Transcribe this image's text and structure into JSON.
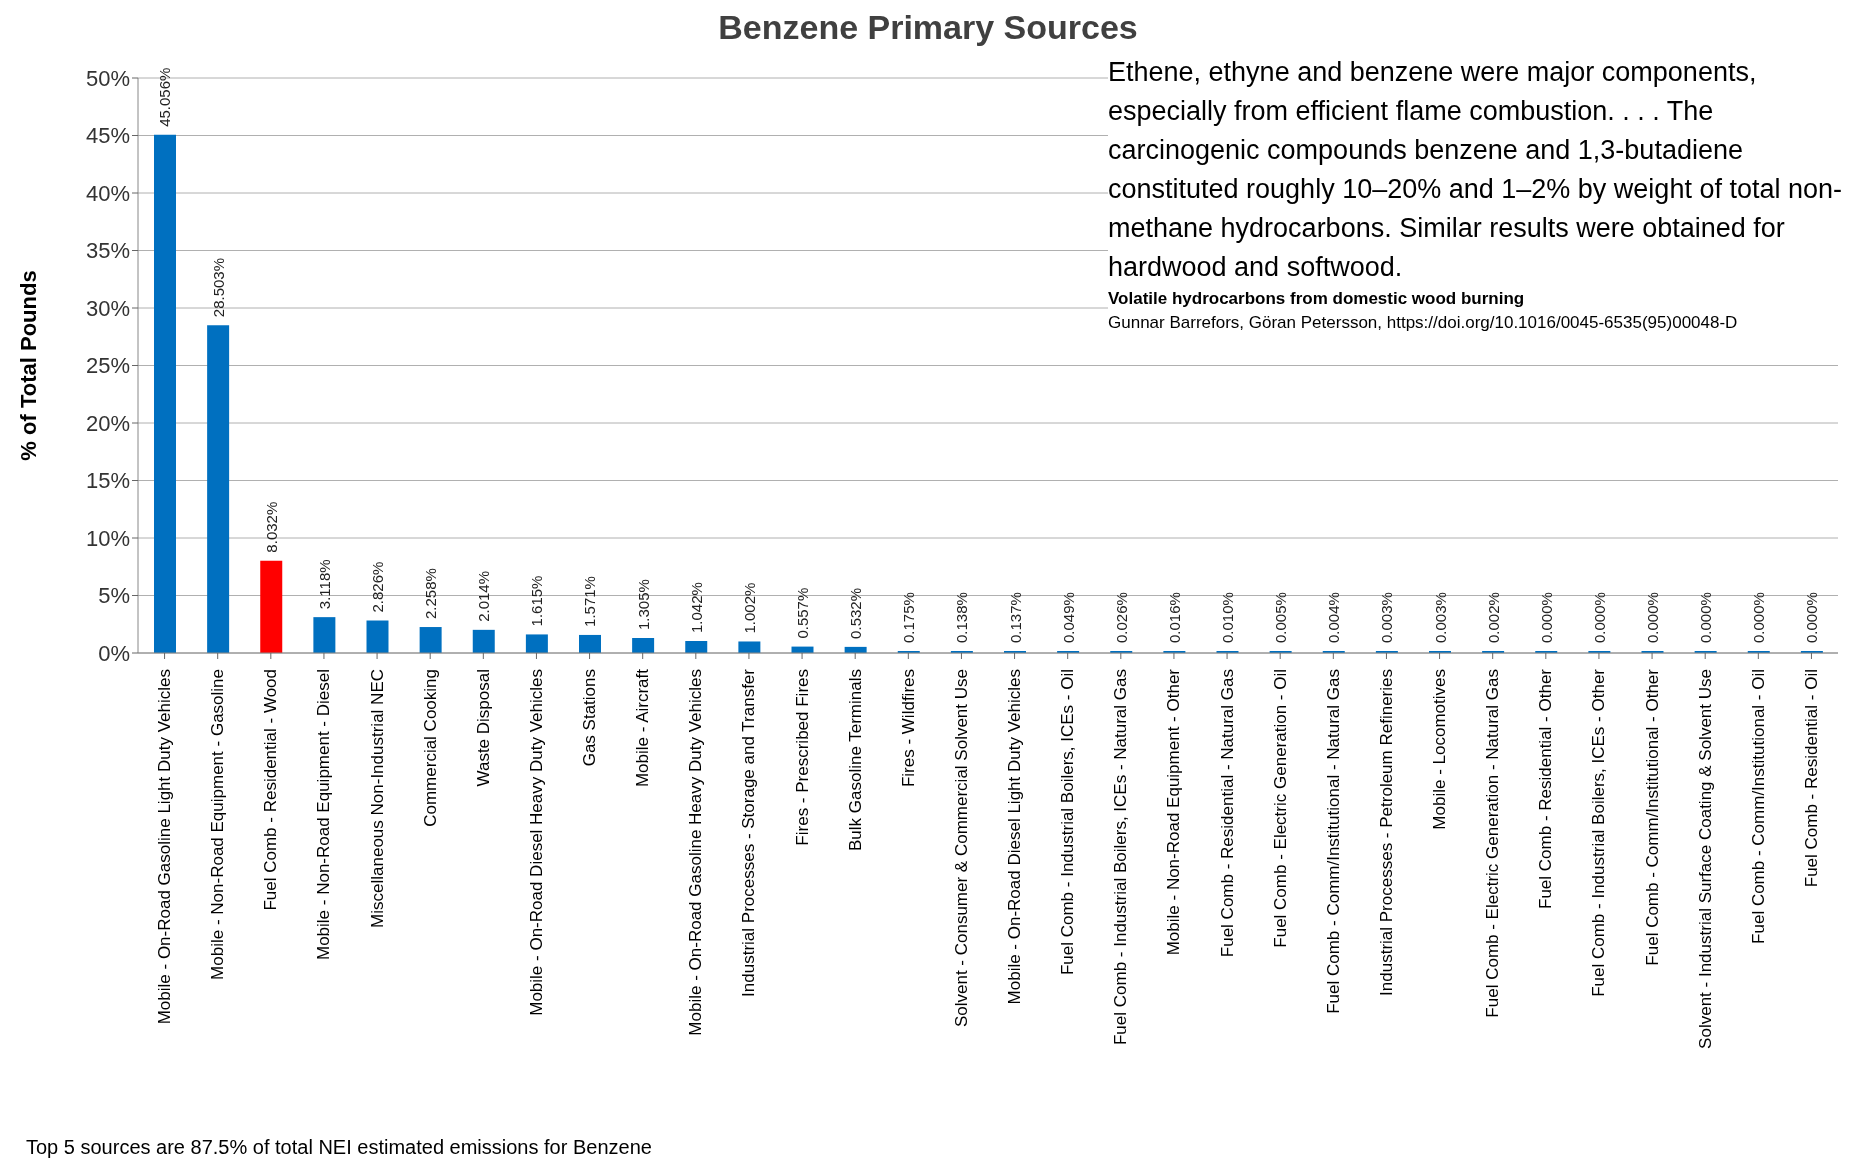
{
  "chart_data": {
    "type": "bar",
    "title": "Benzene Primary Sources",
    "ylabel": "% of Total Pounds",
    "categories": [
      "Mobile - On-Road Gasoline Light Duty Vehicles",
      "Mobile - Non-Road Equipment - Gasoline",
      "Fuel Comb - Residential - Wood",
      "Mobile - Non-Road Equipment - Diesel",
      "Miscellaneous Non-Industrial NEC",
      "Commercial Cooking",
      "Waste Disposal",
      "Mobile - On-Road Diesel Heavy Duty Vehicles",
      "Gas Stations",
      "Mobile - Aircraft",
      "Mobile - On-Road Gasoline Heavy Duty Vehicles",
      "Industrial Processes - Storage and Transfer",
      "Fires - Prescribed Fires",
      "Bulk Gasoline Terminals",
      "Fires - Wildfires",
      "Solvent - Consumer & Commercial Solvent Use",
      "Mobile - On-Road Diesel Light Duty Vehicles",
      "Fuel Comb - Industrial Boilers, ICEs - Oil",
      "Fuel Comb - Industrial Boilers, ICEs - Natural Gas",
      "Mobile - Non-Road Equipment - Other",
      "Fuel Comb - Residential - Natural Gas",
      "Fuel Comb - Electric Generation - Oil",
      "Fuel Comb - Comm/Institutional - Natural Gas",
      "Industrial Processes - Petroleum Refineries",
      "Mobile - Locomotives",
      "Fuel Comb - Electric Generation - Natural Gas",
      "Fuel Comb - Residential - Other",
      "Fuel Comb - Industrial Boilers, ICEs - Other",
      "Fuel Comb - Comm/Institutional - Other",
      "Solvent - Industrial Surface Coating & Solvent Use",
      "Fuel Comb - Comm/Institutional - Oil",
      "Fuel Comb - Residential - Oil"
    ],
    "values": [
      45.056,
      28.503,
      8.032,
      3.118,
      2.826,
      2.258,
      2.014,
      1.615,
      1.571,
      1.305,
      1.042,
      1.002,
      0.557,
      0.532,
      0.175,
      0.138,
      0.137,
      0.049,
      0.026,
      0.016,
      0.01,
      0.005,
      0.004,
      0.003,
      0.003,
      0.002,
      0.0,
      0.0,
      0.0,
      0.0,
      0.0,
      0.0
    ],
    "value_labels": [
      "45.056%",
      "28.503%",
      "8.032%",
      "3.118%",
      "2.826%",
      "2.258%",
      "2.014%",
      "1.615%",
      "1.571%",
      "1.305%",
      "1.042%",
      "1.002%",
      "0.557%",
      "0.532%",
      "0.175%",
      "0.138%",
      "0.137%",
      "0.049%",
      "0.026%",
      "0.016%",
      "0.010%",
      "0.005%",
      "0.004%",
      "0.003%",
      "0.003%",
      "0.002%",
      "0.000%",
      "0.000%",
      "0.000%",
      "0.000%",
      "0.000%",
      "0.000%"
    ],
    "colors": [
      "#0070c0",
      "#0070c0",
      "#ff0000",
      "#0070c0",
      "#0070c0",
      "#0070c0",
      "#0070c0",
      "#0070c0",
      "#0070c0",
      "#0070c0",
      "#0070c0",
      "#0070c0",
      "#0070c0",
      "#0070c0",
      "#0070c0",
      "#0070c0",
      "#0070c0",
      "#0070c0",
      "#0070c0",
      "#0070c0",
      "#0070c0",
      "#0070c0",
      "#0070c0",
      "#0070c0",
      "#0070c0",
      "#0070c0",
      "#0070c0",
      "#0070c0",
      "#0070c0",
      "#0070c0",
      "#0070c0",
      "#0070c0"
    ],
    "ylim": [
      0,
      50
    ],
    "yticks": [
      {
        "value": 0,
        "label": "0%"
      },
      {
        "value": 5,
        "label": "5%"
      },
      {
        "value": 10,
        "label": "10%"
      },
      {
        "value": 15,
        "label": "15%"
      },
      {
        "value": 20,
        "label": "20%"
      },
      {
        "value": 25,
        "label": "25%"
      },
      {
        "value": 30,
        "label": "30%"
      },
      {
        "value": 35,
        "label": "35%"
      },
      {
        "value": 40,
        "label": "40%"
      },
      {
        "value": 45,
        "label": "45%"
      },
      {
        "value": 50,
        "label": "50%"
      }
    ],
    "grid": "y",
    "legend": false,
    "annotations": [
      "Ethene, ethyne and benzene were major components, especially from efficient flame combustion. . . . The carcinogenic compounds benzene and 1,3-butadiene constituted roughly 10–20% and 1–2% by weight of total non-methane hydrocarbons. Similar results were obtained for hardwood and softwood.",
      "Volatile hydrocarbons from domestic wood burning",
      "Gunnar Barrefors, Göran Petersson, https://doi.org/10.1016/0045-6535(95)00048-D",
      "Top 5 sources are 87.5% of total NEI estimated emissions for Benzene"
    ]
  }
}
